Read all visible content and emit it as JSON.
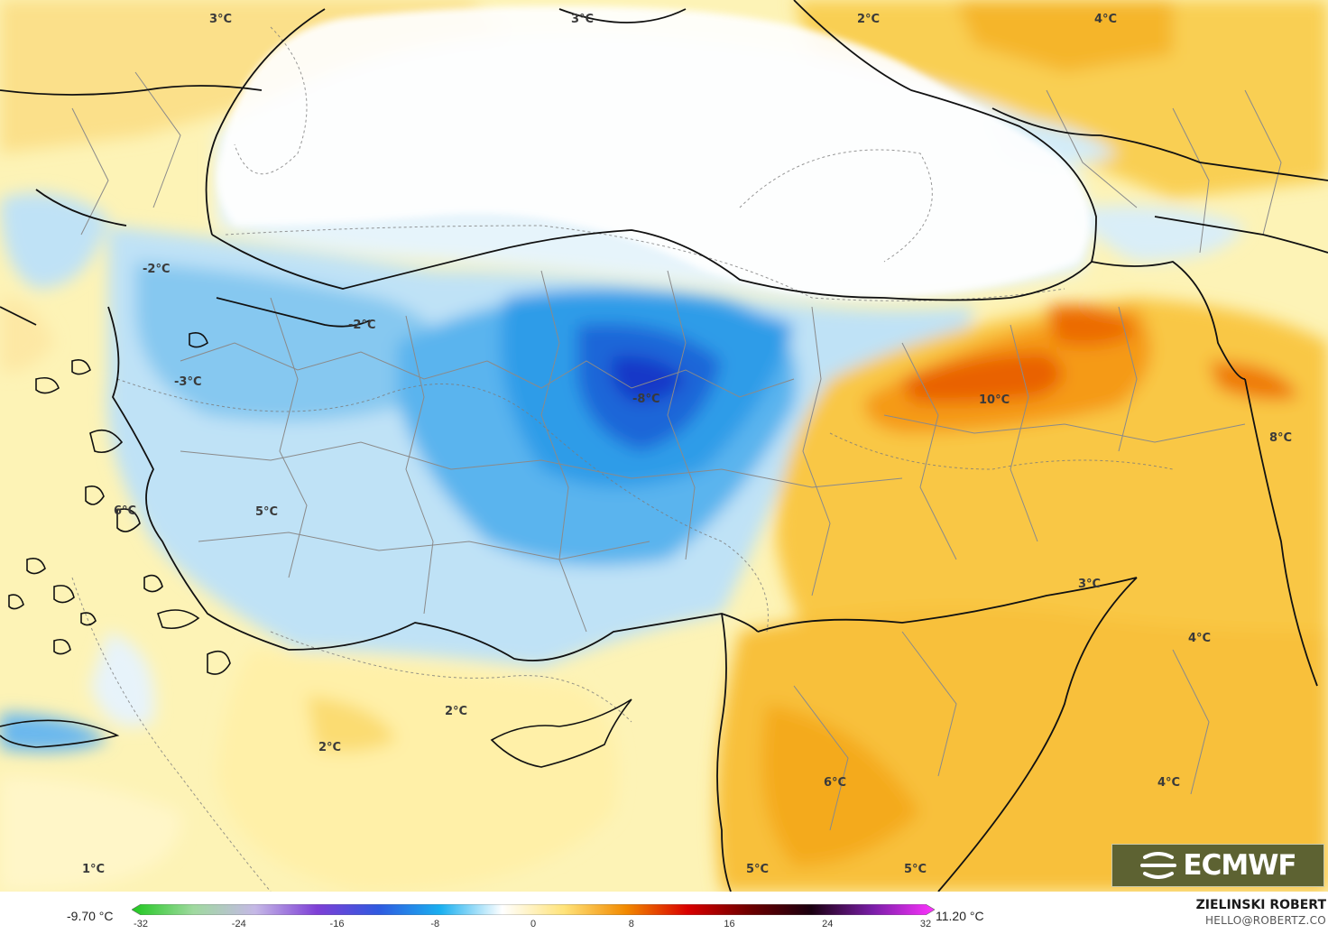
{
  "map": {
    "labels": [
      {
        "text": "3°C"
      },
      {
        "text": "3°C"
      },
      {
        "text": "2°C"
      },
      {
        "text": "4°C"
      },
      {
        "text": "-2°C"
      },
      {
        "text": "-2°C"
      },
      {
        "text": "-3°C"
      },
      {
        "text": "-8°C"
      },
      {
        "text": "10°C"
      },
      {
        "text": "8°C"
      },
      {
        "text": "6°C"
      },
      {
        "text": "5°C"
      },
      {
        "text": "3°C"
      },
      {
        "text": "4°C"
      },
      {
        "text": "2°C"
      },
      {
        "text": "2°C"
      },
      {
        "text": "6°C"
      },
      {
        "text": "4°C"
      },
      {
        "text": "5°C"
      },
      {
        "text": "5°C"
      },
      {
        "text": "1°C"
      }
    ]
  },
  "logo": {
    "text": "ECMWF",
    "icon": "ecmwf-logo-icon",
    "background": "#5d6232"
  },
  "legend": {
    "range_min": "-9.70 °C",
    "range_max": "11.20 °C",
    "ticks": [
      "-32",
      "-24",
      "-16",
      "-8",
      "0",
      "8",
      "16",
      "24",
      "32"
    ],
    "scale_min": -32,
    "scale_max": 32,
    "colors": [
      "#1ec81e",
      "#9fd99f",
      "#c5b8e6",
      "#7e3fd6",
      "#2f5ae0",
      "#1ab0f0",
      "#ffffff",
      "#ffe37a",
      "#f28a00",
      "#d90000",
      "#6e0000",
      "#1a0010",
      "#7a1ea8",
      "#ff33ff"
    ]
  },
  "author": {
    "name": "ZIELINSKI ROBERT",
    "email": "HELLO@ROBERTZ.CO"
  }
}
